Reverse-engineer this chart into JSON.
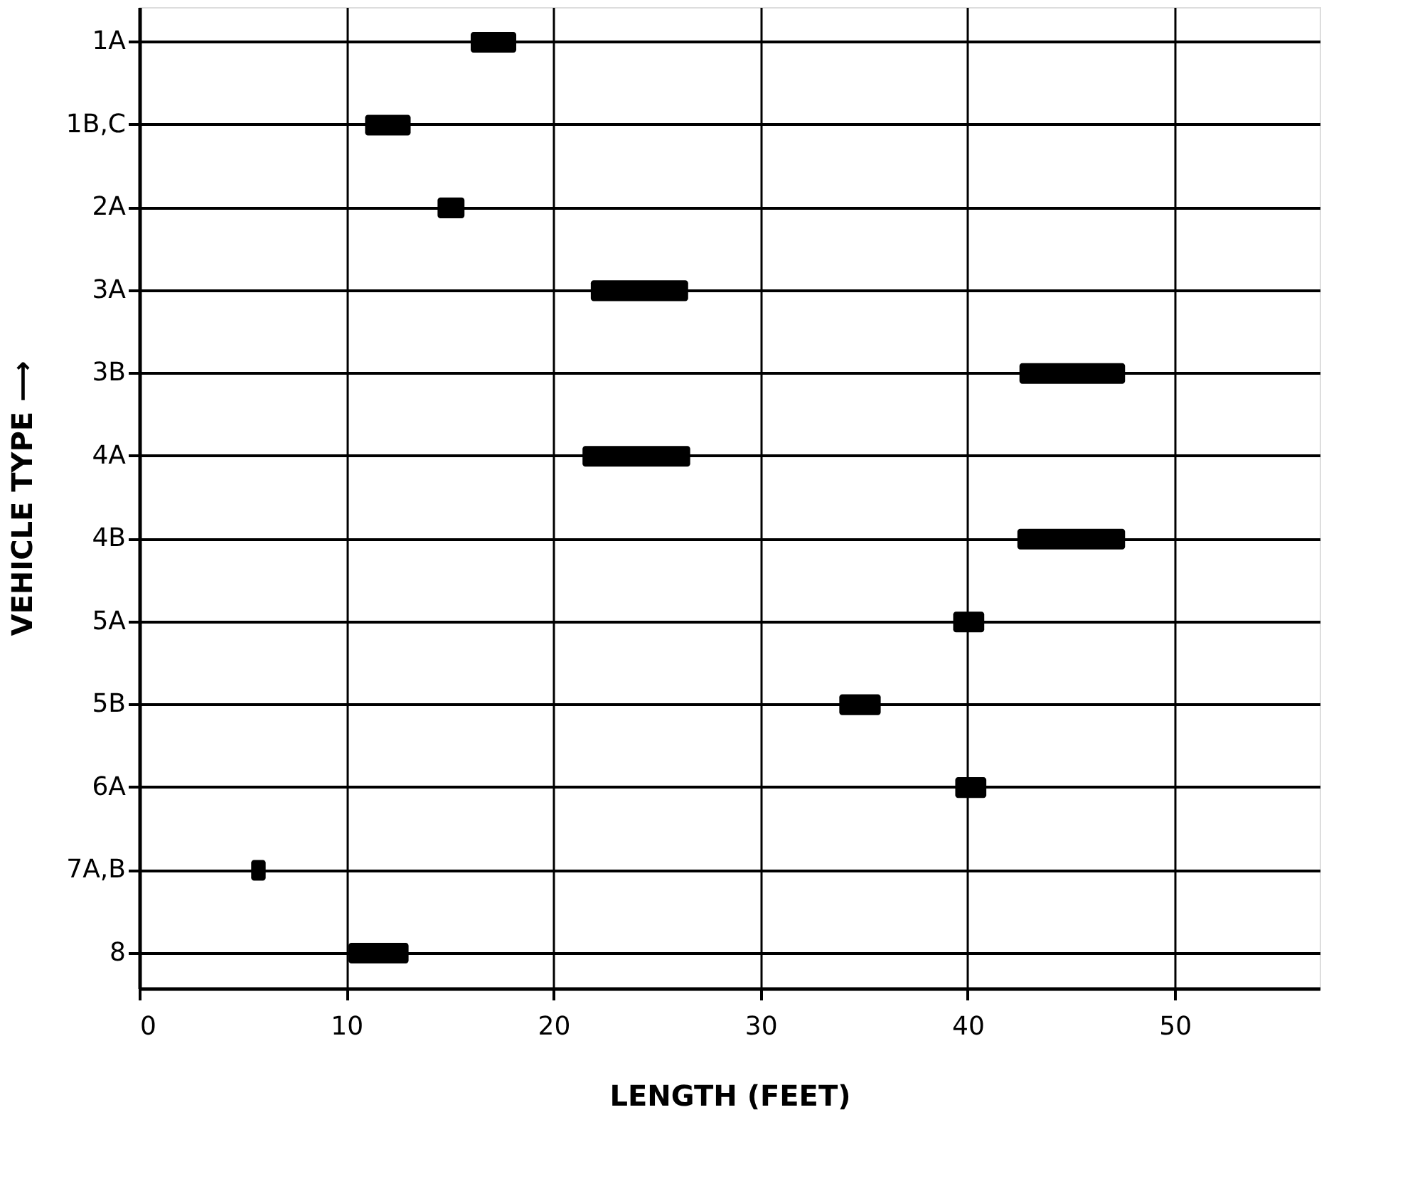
{
  "chart_data": {
    "type": "bar",
    "orientation": "horizontal",
    "xlabel": "LENGTH (FEET)",
    "ylabel": "VEHICLE TYPE ⟶",
    "categories": [
      "1A",
      "1B,C",
      "2A",
      "3A",
      "3B",
      "4A",
      "4B",
      "5A",
      "5B",
      "6A",
      "7A,B",
      "8"
    ],
    "base": [
      16.0,
      10.9,
      14.4,
      21.8,
      42.5,
      21.4,
      42.4,
      39.3,
      33.8,
      39.4,
      5.4,
      10.1
    ],
    "values": [
      2.2,
      2.2,
      1.3,
      4.7,
      5.1,
      5.2,
      5.2,
      1.5,
      2.0,
      1.5,
      0.7,
      2.9
    ],
    "color": "#000000",
    "xlim": [
      0,
      57
    ],
    "xticks": [
      0,
      10,
      20,
      30,
      40,
      50
    ],
    "grid": true
  }
}
